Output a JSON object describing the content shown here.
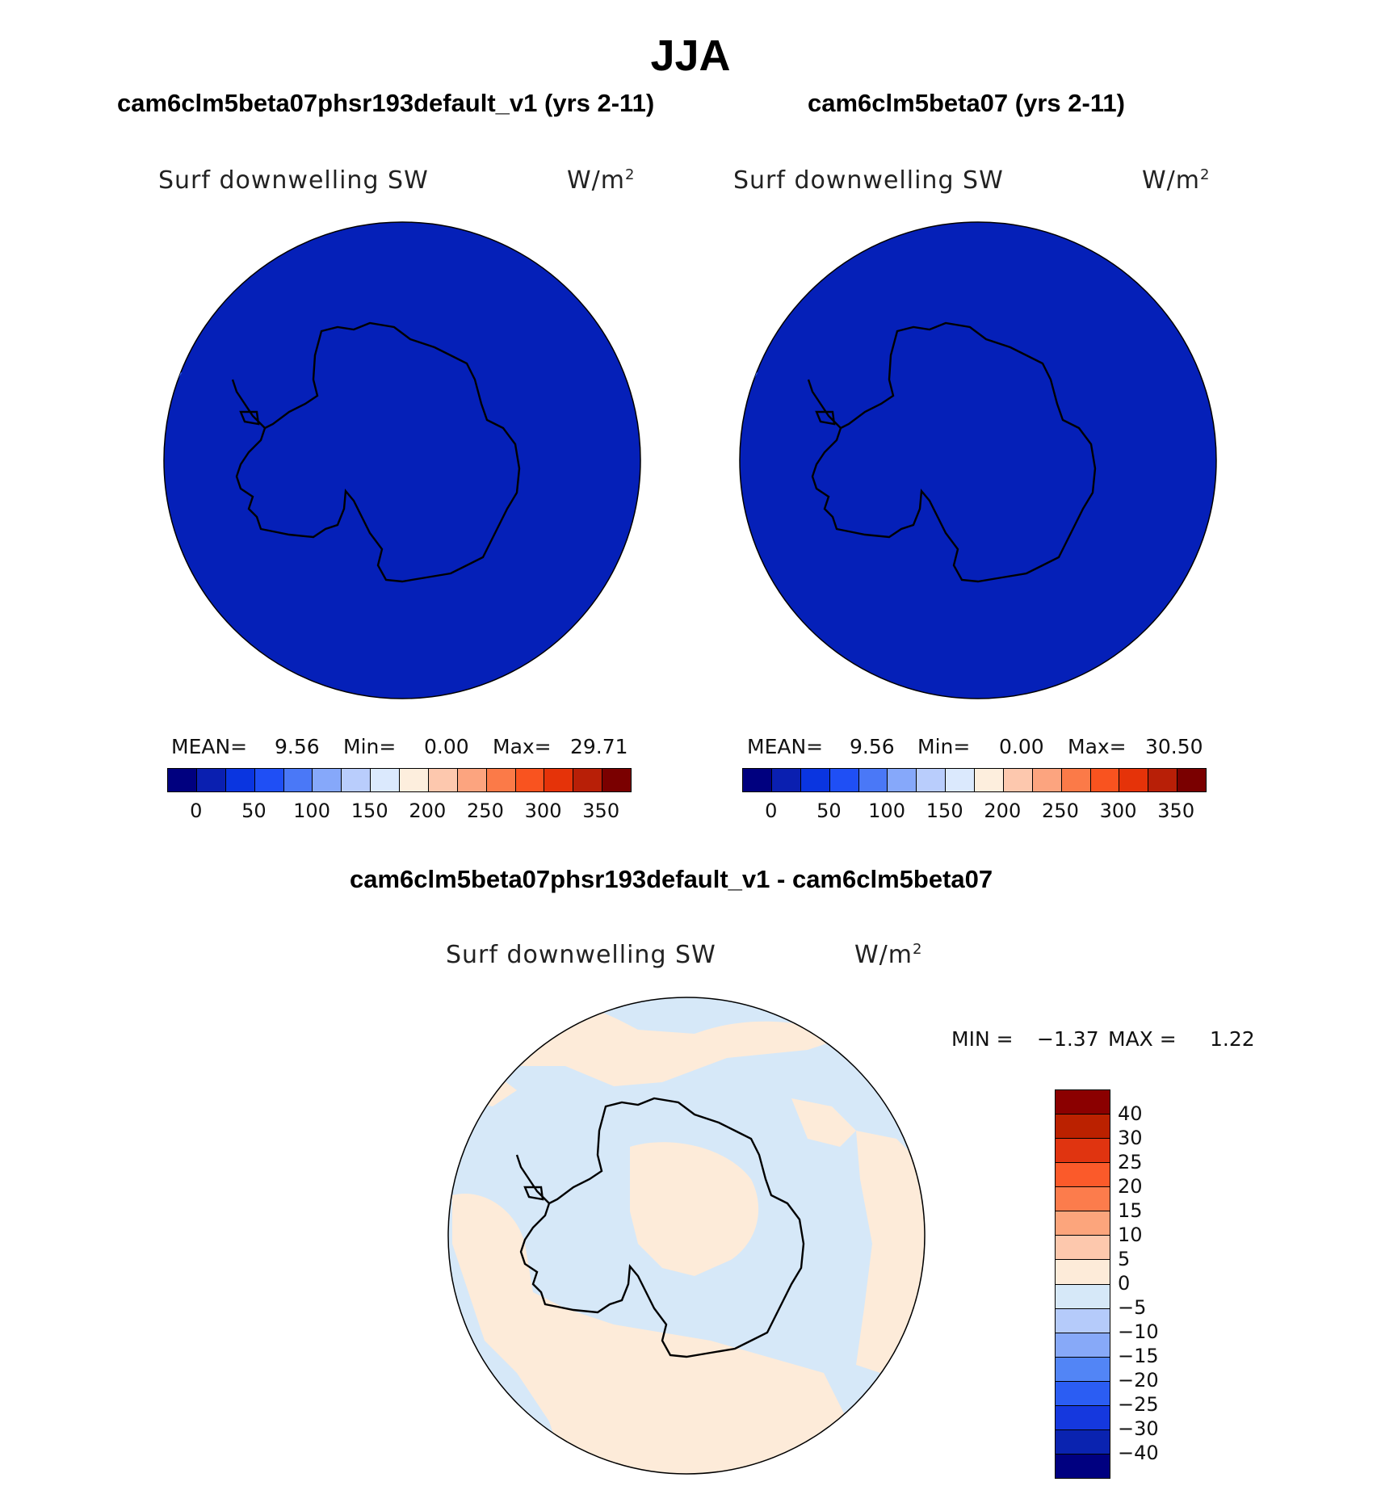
{
  "title": "JJA",
  "colors": {
    "field_fill": "#0520b8",
    "diff_positive": "#fdebd9",
    "diff_negative": "#d6e8f8",
    "coast": "#000000"
  },
  "panels": [
    {
      "name": "cam6clm5beta07phsr193default_v1 (yrs 2-11)",
      "field_label": "Surf downwelling SW",
      "units_label": "W/m",
      "units_power": "2",
      "mean_label": "MEAN=",
      "mean_value": "9.56",
      "min_label": "Min=",
      "min_value": "0.00",
      "max_label": "Max=",
      "max_value": "29.71"
    },
    {
      "name": "cam6clm5beta07 (yrs 2-11)",
      "field_label": "Surf downwelling SW",
      "units_label": "W/m",
      "units_power": "2",
      "mean_label": "MEAN=",
      "mean_value": "9.56",
      "min_label": "Min=",
      "min_value": "0.00",
      "max_label": "Max=",
      "max_value": "30.50"
    }
  ],
  "field_colorbar": {
    "ticks": [
      "0",
      "50",
      "100",
      "150",
      "200",
      "250",
      "300",
      "350"
    ],
    "colors": [
      "#00007f",
      "#0a1fb0",
      "#0a35e0",
      "#1f4ff5",
      "#4a78f7",
      "#86a8fa",
      "#b9cdfc",
      "#dbe9fd",
      "#fdeedd",
      "#fdc8ae",
      "#fca47f",
      "#fb7a48",
      "#f9531f",
      "#e53309",
      "#b81f07",
      "#7a0000"
    ]
  },
  "difference": {
    "title": "cam6clm5beta07phsr193default_v1 - cam6clm5beta07",
    "field_label": "Surf downwelling SW",
    "units_label": "W/m",
    "units_power": "2",
    "min_label": "MIN =",
    "min_value": "−1.37",
    "max_label": "MAX =",
    "max_value": "1.22",
    "colorbar_labels": [
      "40",
      "30",
      "25",
      "20",
      "15",
      "10",
      "5",
      "0",
      "−5",
      "−10",
      "−15",
      "−20",
      "−25",
      "−30",
      "−40"
    ],
    "colorbar_colors": [
      "#8b0000",
      "#bb2100",
      "#e03410",
      "#fb5a2a",
      "#fc7c4c",
      "#fca57c",
      "#fdc8ad",
      "#fdebd9",
      "#d6e8f8",
      "#b5cbfa",
      "#87a9f8",
      "#5285f6",
      "#2b5df3",
      "#1538de",
      "#0a23b0",
      "#000080"
    ]
  }
}
